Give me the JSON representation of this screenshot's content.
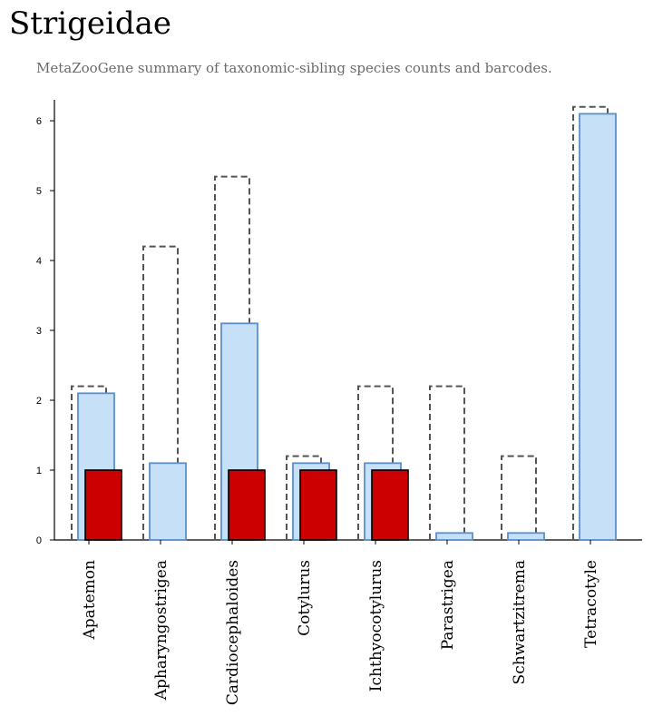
{
  "chart_data": {
    "type": "bar",
    "title": "Strigeidae",
    "subtitle": "MetaZooGene summary of taxonomic-sibling species counts and barcodes.",
    "categories": [
      "Apatemon",
      "Apharyngostrigea",
      "Cardiocephaloides",
      "Cotylurus",
      "Ichthyocotylurus",
      "Parastrigea",
      "Schwartzitrema",
      "Tetracotyle"
    ],
    "ylim": [
      0,
      6.3
    ],
    "yticks": [
      0,
      1,
      2,
      3,
      4,
      5,
      6
    ],
    "grid": false,
    "legend": "none",
    "series": [
      {
        "values": [
          2.2,
          4.2,
          5.2,
          1.2,
          2.2,
          2.2,
          1.2,
          6.2
        ],
        "style": "dashed-outline",
        "color": "#555555"
      },
      {
        "values": [
          2.1,
          1.1,
          3.1,
          1.1,
          1.1,
          0.1,
          0.1,
          6.1
        ],
        "style": "filled",
        "color": "#c6e0f8",
        "stroke": "#5b8fcc"
      },
      {
        "values": [
          1,
          0,
          1,
          1,
          1,
          0,
          0,
          0
        ],
        "style": "filled",
        "color": "#cc0000",
        "stroke": "#000000"
      }
    ]
  }
}
